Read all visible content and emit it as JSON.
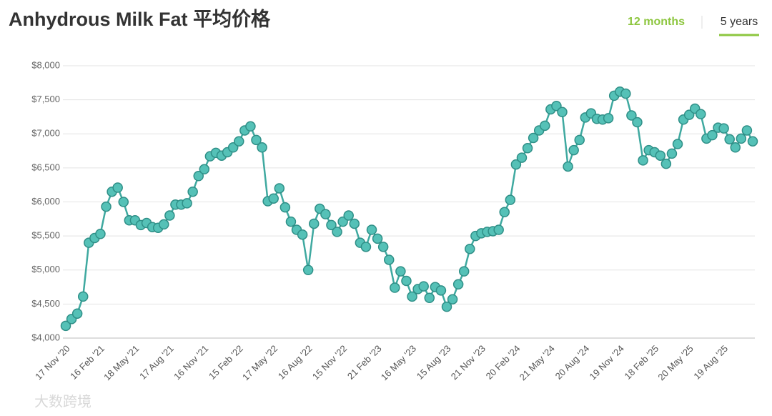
{
  "tabs": [
    "12 months",
    "5 years"
  ],
  "watermark": "大数跨境",
  "chart_data": {
    "type": "line",
    "title": "Anhydrous Milk Fat 平均价格",
    "categories": [
      "17 Nov '20",
      null,
      null,
      null,
      null,
      null,
      "16 Feb '21",
      null,
      null,
      null,
      null,
      null,
      "18 May '21",
      null,
      null,
      null,
      null,
      null,
      "17 Aug '21",
      null,
      null,
      null,
      null,
      null,
      "16 Nov '21",
      null,
      null,
      null,
      null,
      null,
      "15 Feb '22",
      null,
      null,
      null,
      null,
      null,
      "17 May '22",
      null,
      null,
      null,
      null,
      null,
      "16 Aug '22",
      null,
      null,
      null,
      null,
      null,
      "15 Nov '22",
      null,
      null,
      null,
      null,
      null,
      "21 Feb '23",
      null,
      null,
      null,
      null,
      null,
      "16 May '23",
      null,
      null,
      null,
      null,
      null,
      "15 Aug '23",
      null,
      null,
      null,
      null,
      null,
      "21 Nov '23",
      null,
      null,
      null,
      null,
      null,
      "20 Feb '24",
      null,
      null,
      null,
      null,
      null,
      "21 May '24",
      null,
      null,
      null,
      null,
      null,
      "20 Aug '24",
      null,
      null,
      null,
      null,
      null,
      "19 Nov '24",
      null,
      null,
      null,
      null,
      null,
      "18 Feb '25",
      null,
      null,
      null,
      null,
      null,
      "20 May '25",
      null,
      null,
      null,
      null,
      null,
      "19 Aug '25",
      null,
      null,
      null,
      null,
      null
    ],
    "values": [
      4180,
      4280,
      4360,
      4610,
      5400,
      5470,
      5530,
      5930,
      6150,
      6210,
      6000,
      5730,
      5730,
      5660,
      5690,
      5630,
      5620,
      5670,
      5800,
      5960,
      5960,
      5980,
      6150,
      6380,
      6480,
      6670,
      6720,
      6680,
      6730,
      6800,
      6890,
      7050,
      7110,
      6910,
      6800,
      6010,
      6050,
      6200,
      5920,
      5710,
      5590,
      5520,
      5000,
      5680,
      5900,
      5820,
      5660,
      5560,
      5710,
      5800,
      5680,
      5400,
      5340,
      5590,
      5460,
      5340,
      5150,
      4740,
      4980,
      4840,
      4610,
      4720,
      4760,
      4590,
      4750,
      4700,
      4460,
      4570,
      4790,
      4980,
      5310,
      5500,
      5540,
      5560,
      5570,
      5590,
      5850,
      6030,
      6550,
      6650,
      6790,
      6940,
      7050,
      7120,
      7360,
      7410,
      7320,
      6520,
      6760,
      6910,
      7240,
      7300,
      7220,
      7210,
      7230,
      7560,
      7620,
      7590,
      7270,
      7170,
      6610,
      6760,
      6730,
      6680,
      6560,
      6710,
      6850,
      7210,
      7280,
      7370,
      7290,
      6930,
      6980,
      7090,
      7080,
      6920,
      6800,
      6930,
      7050,
      6890
    ],
    "color": "#3fa9a0",
    "ylim": [
      4000,
      8000
    ],
    "yticks": [
      {
        "value": 4000,
        "label": "$4,000"
      },
      {
        "value": 4500,
        "label": "$4,500"
      },
      {
        "value": 5000,
        "label": "$5,000"
      },
      {
        "value": 5500,
        "label": "$5,500"
      },
      {
        "value": 6000,
        "label": "$6,000"
      },
      {
        "value": 6500,
        "label": "$6,500"
      },
      {
        "value": 7000,
        "label": "$7,000"
      },
      {
        "value": 7500,
        "label": "$7,500"
      },
      {
        "value": 8000,
        "label": "$8,000"
      }
    ],
    "grid": true
  }
}
